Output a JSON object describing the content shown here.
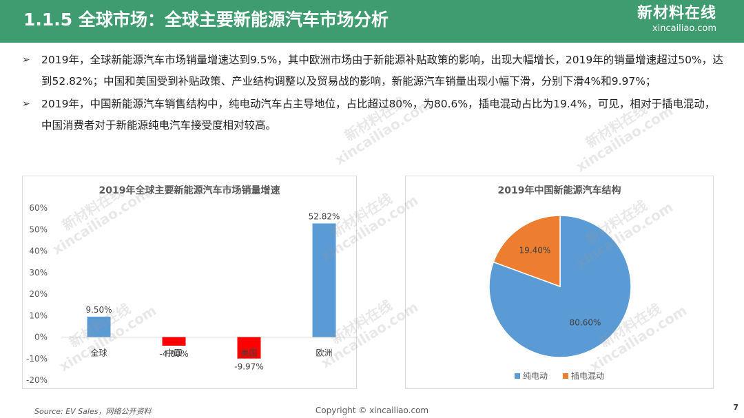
{
  "header": {
    "title": "1.1.5 全球市场：全球主要新能源汽车市场分析",
    "logo_cn": "新材料在线",
    "logo_en": "xincailiao.com"
  },
  "bullets": [
    "2019年，全球新能源汽车市场销量增速达到9.5%，其中欧洲市场由于新能源补贴政策的影响，出现大幅增长，2019年的销量增速超过50%，达到52.82%；中国和美国受到补贴政策、产业结构调整以及贸易战的影响，新能源汽车销量出现小幅下滑，分别下滑4%和9.97%；",
    "2019年，中国新能源汽车销售结构中，纯电动汽车占主导地位，占比超过80%，为80.6%，插电混动占比为19.4%，可见，相对于插电混动，中国消费者对于新能源纯电汽车接受度相对较高。"
  ],
  "chart_data": [
    {
      "type": "bar",
      "title": "2019年全球主要新能源汽车市场销量增速",
      "categories": [
        "全球",
        "中国",
        "美国",
        "欧洲"
      ],
      "values": [
        9.5,
        -4.0,
        -9.97,
        52.82
      ],
      "data_labels": [
        "9.50%",
        "-4.00%",
        "-9.97%",
        "52.82%"
      ],
      "colors": [
        "#5b9bd5",
        "#ff0000",
        "#ff0000",
        "#5b9bd5"
      ],
      "ylim": [
        -20,
        60
      ],
      "yticks": [
        "-20%",
        "-10%",
        "0%",
        "10%",
        "20%",
        "30%",
        "40%",
        "50%",
        "60%"
      ],
      "grid": false
    },
    {
      "type": "pie",
      "title": "2019年中国新能源汽车结构",
      "labels": [
        "纯电动",
        "插电混动"
      ],
      "values": [
        80.6,
        19.4
      ],
      "data_labels": [
        "80.60%",
        "19.40%"
      ],
      "colors": [
        "#5b9bd5",
        "#ed7d31"
      ],
      "legend_position": "bottom"
    }
  ],
  "watermark": {
    "cn": "新材料在线",
    "en": "xincailiao.com"
  },
  "footer": {
    "source": "Source:  EV Sales，网络公开资料",
    "copyright": "Copyright © xincailiao.com",
    "page": "7"
  }
}
